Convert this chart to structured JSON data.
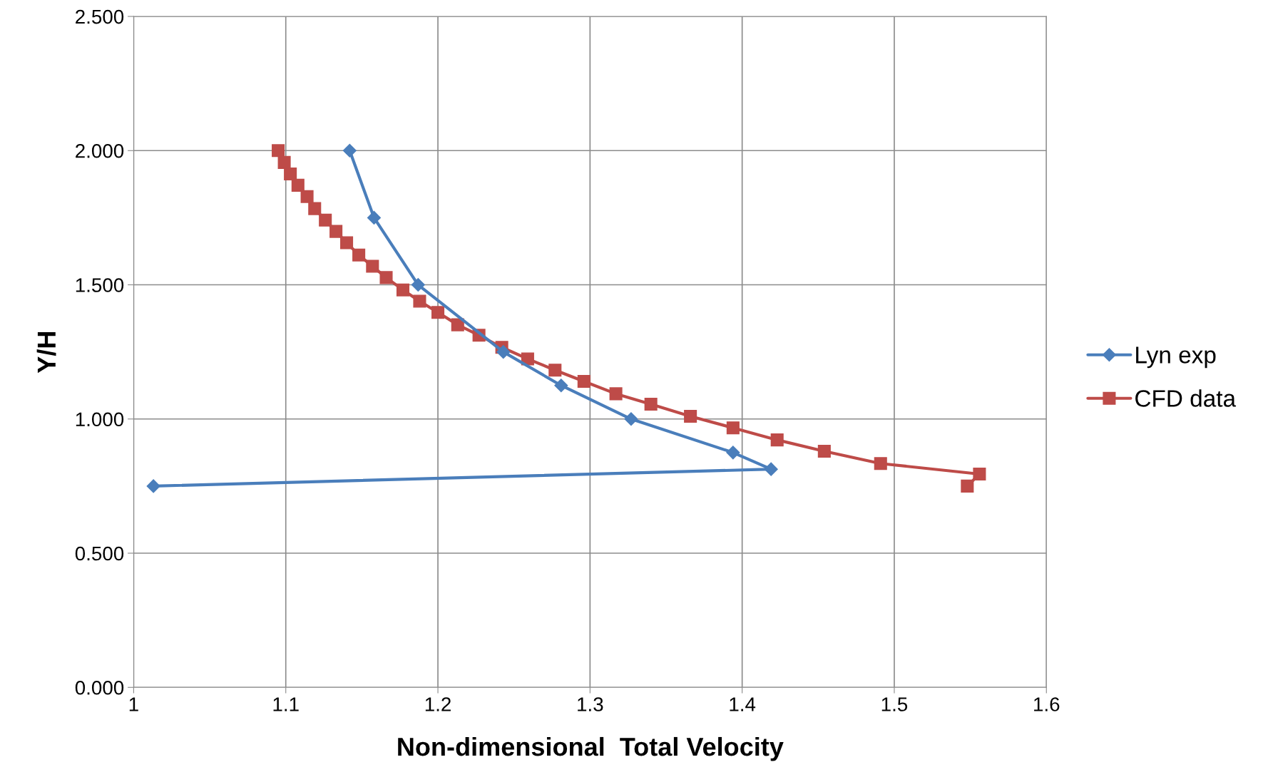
{
  "chart_data": {
    "type": "line",
    "xlabel": "Non-dimensional  Total Velocity",
    "ylabel": "Y/H",
    "xlim": [
      1,
      1.6
    ],
    "xticks": [
      1,
      1.1,
      1.2,
      1.3,
      1.4,
      1.5,
      1.6
    ],
    "ylim": [
      0,
      2.5
    ],
    "yticks": [
      {
        "value": 0,
        "label": "0.000"
      },
      {
        "value": 0.5,
        "label": "0.500"
      },
      {
        "value": 1,
        "label": "1.000"
      },
      {
        "value": 1.5,
        "label": "1.500"
      },
      {
        "value": 2,
        "label": "2.000"
      },
      {
        "value": 2.5,
        "label": "2.500"
      }
    ],
    "grid": true,
    "legend": "right",
    "line_style": "solid",
    "series": [
      {
        "name": "Lyn exp",
        "color": "#4a7ebb",
        "marker": "diamond",
        "x": [
          1.142,
          1.158,
          1.187,
          1.243,
          1.281,
          1.327,
          1.394,
          1.419,
          1.013
        ],
        "values": [
          2.0,
          1.75,
          1.5,
          1.25,
          1.125,
          1.0,
          0.875,
          0.813,
          0.75
        ]
      },
      {
        "name": "CFD data",
        "color": "#be4b48",
        "marker": "square",
        "x": [
          1.095,
          1.099,
          1.103,
          1.108,
          1.114,
          1.119,
          1.126,
          1.133,
          1.14,
          1.148,
          1.157,
          1.166,
          1.177,
          1.188,
          1.2,
          1.213,
          1.227,
          1.242,
          1.259,
          1.277,
          1.296,
          1.317,
          1.34,
          1.366,
          1.394,
          1.423,
          1.454,
          1.491,
          1.556,
          1.548
        ],
        "values": [
          2.0,
          1.956,
          1.913,
          1.871,
          1.829,
          1.784,
          1.741,
          1.699,
          1.657,
          1.611,
          1.569,
          1.527,
          1.481,
          1.439,
          1.397,
          1.351,
          1.312,
          1.267,
          1.224,
          1.182,
          1.14,
          1.094,
          1.055,
          1.01,
          0.967,
          0.922,
          0.88,
          0.834,
          0.795,
          0.75
        ]
      }
    ]
  }
}
